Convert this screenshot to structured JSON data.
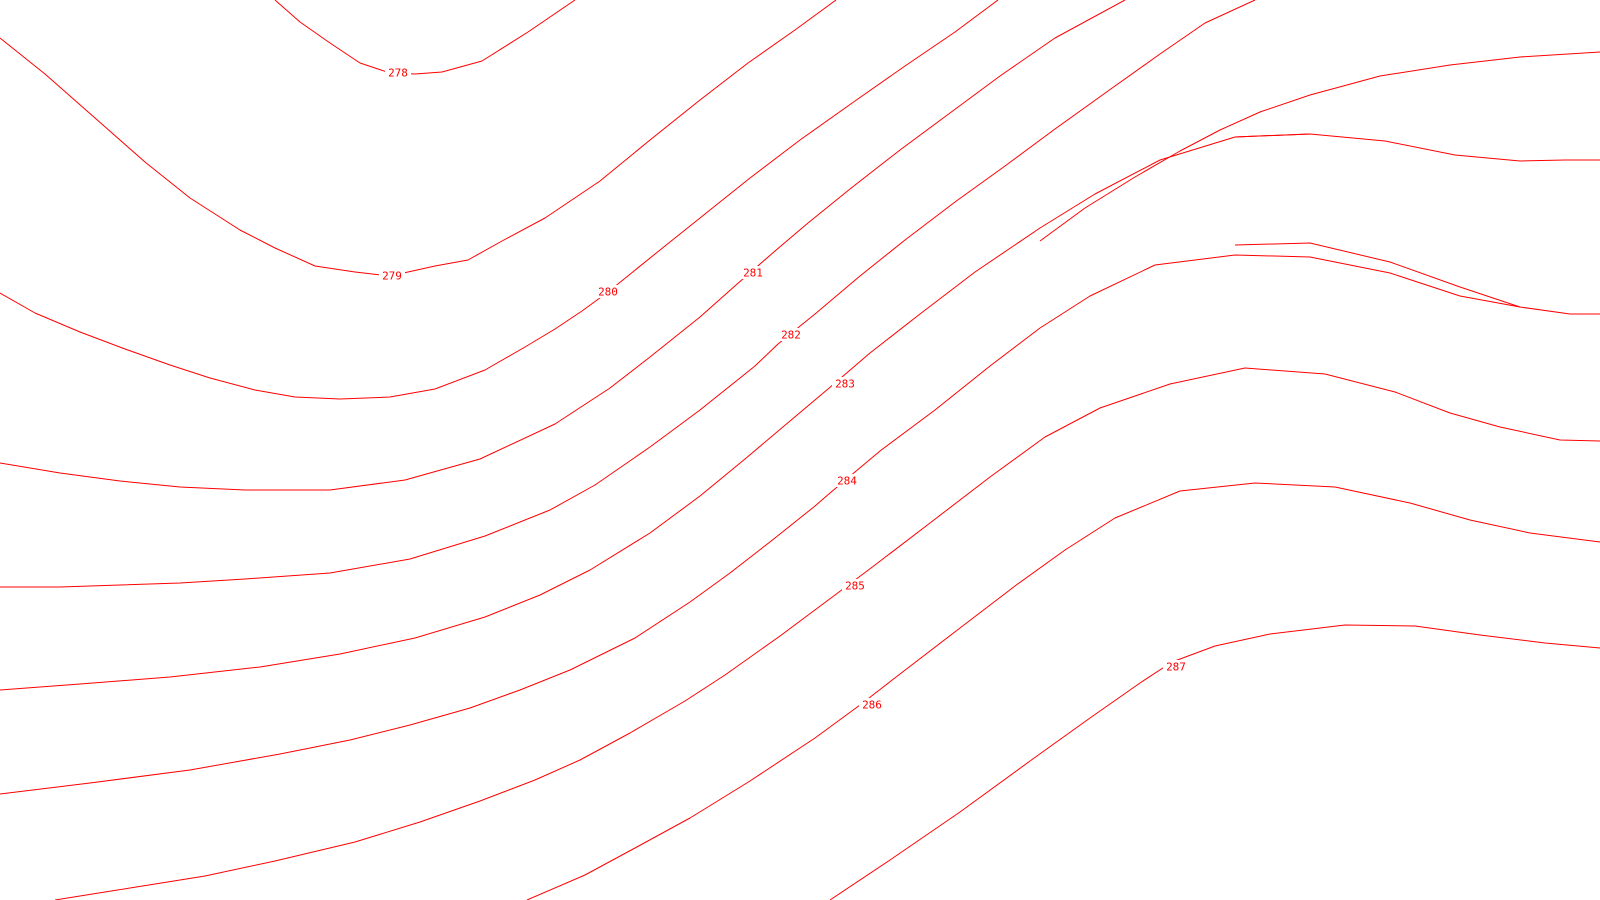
{
  "map": {
    "type": "contour-map",
    "line_color": "#ff0000",
    "background_color": "#ffffff",
    "contours": [
      {
        "level": 278,
        "label": "278"
      },
      {
        "level": 279,
        "label": "279"
      },
      {
        "level": 280,
        "label": "280"
      },
      {
        "level": 281,
        "label": "281"
      },
      {
        "level": 282,
        "label": "282"
      },
      {
        "level": 283,
        "label": "283"
      },
      {
        "level": 284,
        "label": "284"
      },
      {
        "level": 285,
        "label": "285"
      },
      {
        "level": 286,
        "label": "286"
      },
      {
        "level": 287,
        "label": "287"
      }
    ]
  }
}
